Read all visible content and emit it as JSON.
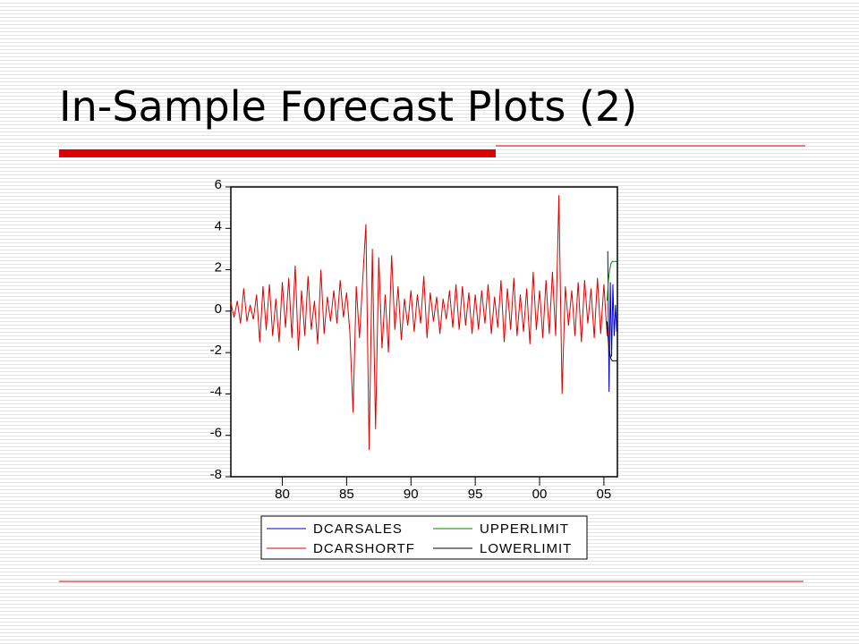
{
  "slide_title": "In-Sample Forecast Plots (2)",
  "chart_data": {
    "type": "line",
    "xlim": [
      1976,
      2006.05
    ],
    "xticks": [
      {
        "value": 1980,
        "label": "80"
      },
      {
        "value": 1985,
        "label": "85"
      },
      {
        "value": 1990,
        "label": "90"
      },
      {
        "value": 1995,
        "label": "95"
      },
      {
        "value": 2000,
        "label": "00"
      },
      {
        "value": 2005,
        "label": "05"
      }
    ],
    "ylim": [
      -8,
      6
    ],
    "yticks": [
      -8,
      -6,
      -4,
      -2,
      0,
      2,
      4,
      6
    ],
    "series": [
      {
        "name": "DCARSALES",
        "color": "#0000cc",
        "x": [
          2005.3,
          2005.4,
          2005.5,
          2005.6,
          2005.7,
          2005.8,
          2005.9,
          2006.0
        ],
        "values": [
          2.9,
          -3.9,
          1.4,
          -2.2,
          1.3,
          -1.2,
          0.3,
          -1.0
        ]
      },
      {
        "name": "UPPERLIMIT",
        "color": "#008800",
        "x": [
          2005.25,
          2005.35,
          2005.45,
          2005.55,
          2005.65,
          2005.75,
          2005.9,
          2006.0
        ],
        "values": [
          0.5,
          1.5,
          2.0,
          2.3,
          2.4,
          2.4,
          2.4,
          2.4
        ]
      },
      {
        "name": "DCARSHORTF",
        "color": "#dd0000",
        "x": [
          1976,
          1976.25,
          1976.5,
          1976.75,
          1977,
          1977.25,
          1977.5,
          1977.75,
          1978,
          1978.25,
          1978.5,
          1978.75,
          1979,
          1979.25,
          1979.5,
          1979.75,
          1980,
          1980.25,
          1980.5,
          1980.75,
          1981,
          1981.25,
          1981.5,
          1981.75,
          1982,
          1982.25,
          1982.5,
          1982.75,
          1983,
          1983.25,
          1983.5,
          1983.75,
          1984,
          1984.25,
          1984.5,
          1984.75,
          1985,
          1985.25,
          1985.5,
          1985.75,
          1986,
          1986.25,
          1986.5,
          1986.75,
          1987,
          1987.25,
          1987.5,
          1987.75,
          1988,
          1988.25,
          1988.5,
          1988.75,
          1989,
          1989.25,
          1989.5,
          1989.75,
          1990,
          1990.25,
          1990.5,
          1990.75,
          1991,
          1991.25,
          1991.5,
          1991.75,
          1992,
          1992.25,
          1992.5,
          1992.75,
          1993,
          1993.25,
          1993.5,
          1993.75,
          1994,
          1994.25,
          1994.5,
          1994.75,
          1995,
          1995.25,
          1995.5,
          1995.75,
          1996,
          1996.25,
          1996.5,
          1996.75,
          1997,
          1997.25,
          1997.5,
          1997.75,
          1998,
          1998.25,
          1998.5,
          1998.75,
          1999,
          1999.25,
          1999.5,
          1999.75,
          2000,
          2000.25,
          2000.5,
          2000.75,
          2001,
          2001.25,
          2001.5,
          2001.75,
          2002,
          2002.25,
          2002.5,
          2002.75,
          2003,
          2003.25,
          2003.5,
          2003.75,
          2004,
          2004.25,
          2004.5,
          2004.75,
          2005,
          2005.25
        ],
        "values": [
          0.4,
          -0.3,
          0.5,
          -0.6,
          1.1,
          -0.5,
          0.3,
          -0.4,
          0.8,
          -1.5,
          1.2,
          -0.9,
          1.3,
          -1.2,
          0.6,
          -1.5,
          1.4,
          -0.8,
          1.6,
          -1.3,
          2.2,
          -1.9,
          1.0,
          -1.2,
          1.7,
          -0.9,
          0.5,
          -1.6,
          2.0,
          -1.1,
          0.7,
          -0.5,
          1.0,
          -0.6,
          1.5,
          -0.3,
          0.9,
          -1.0,
          -4.9,
          1.2,
          -1.3,
          1.5,
          4.2,
          -6.7,
          3.0,
          -5.7,
          2.6,
          -1.8,
          0.8,
          -2.0,
          2.7,
          -0.9,
          1.2,
          -1.4,
          0.6,
          -0.7,
          1.0,
          -1.0,
          0.8,
          -0.6,
          1.7,
          -1.3,
          0.9,
          -0.5,
          0.7,
          -1.1,
          0.6,
          -0.4,
          1.0,
          -0.8,
          1.3,
          -0.9,
          1.2,
          -0.7,
          0.9,
          -1.1,
          0.8,
          -0.9,
          1.0,
          -0.6,
          1.3,
          -1.1,
          0.7,
          -0.8,
          1.5,
          -1.5,
          1.1,
          -0.9,
          1.6,
          -1.2,
          0.8,
          -1.0,
          1.1,
          -1.6,
          1.9,
          -0.9,
          1.0,
          -1.3,
          1.5,
          -1.1,
          1.9,
          -1.2,
          5.6,
          -4.0,
          1.2,
          -0.7,
          1.0,
          -1.2,
          1.4,
          -1.5,
          1.5,
          -0.6,
          1.1,
          -1.3,
          1.6,
          -1.1,
          1.3,
          -1.2
        ]
      },
      {
        "name": "LOWERLIMIT",
        "color": "#000000",
        "x": [
          2005.25,
          2005.35,
          2005.45,
          2005.55,
          2005.65,
          2005.75,
          2005.9,
          2006.0
        ],
        "values": [
          -0.5,
          -1.5,
          -2.0,
          -2.3,
          -2.4,
          -2.4,
          -2.4,
          -2.4
        ]
      }
    ]
  }
}
